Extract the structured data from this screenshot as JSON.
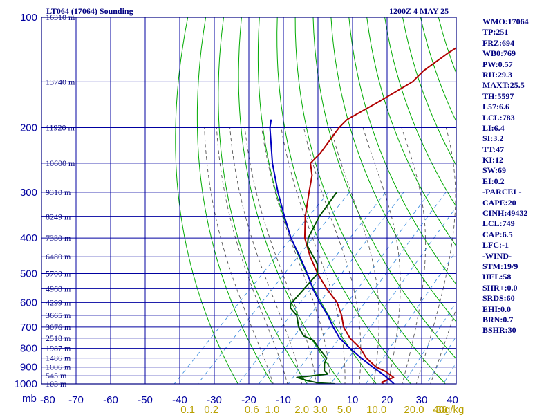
{
  "header": {
    "title": "LT064 (17064) Sounding",
    "timestamp": "1200Z  4 MAY 25"
  },
  "parameters": [
    "WMO:17064",
    "TP:251",
    "FRZ:694",
    "WB0:769",
    "PW:0.57",
    "RH:29.3",
    "MAXT:25.5",
    "TH:5597",
    "L57:6.6",
    "LCL:783",
    "LI:6.4",
    "SI:3.2",
    "TT:47",
    "KI:12",
    "SW:69",
    "EI:0.2",
    "-PARCEL-",
    "CAPE:20",
    "CINH:49432",
    "LCL:749",
    "CAP:6.5",
    "LFC:-1",
    "-WIND-",
    "STM:19/9",
    "HEL:58",
    "SHR+:0.0",
    "SRDS:60",
    "EHI:0.0",
    "BRN:0.7",
    "BSHR:30"
  ],
  "colors": {
    "frame": "#000080",
    "grid": "#0000a0",
    "dry_adiabat": "#00aa00",
    "moist_adiabat": "#555555",
    "mixing_ratio": "#4090e0",
    "temperature": "#b00000",
    "dewpoint": "#005000",
    "parcel": "#0000c0",
    "axis_text": "#0000a0",
    "mixing_text": "#b8a000"
  },
  "chart_data": {
    "type": "line",
    "title": "LT064 (17064) Sounding",
    "xlabel": "",
    "ylabel": "mb",
    "x_axis_unit": "°C",
    "xlim": [
      -80,
      40
    ],
    "ylim_hPa": [
      1000,
      100
    ],
    "y_scale": "log",
    "grid": true,
    "pressure_ticks": [
      100,
      200,
      300,
      400,
      500,
      600,
      700,
      800,
      900,
      1000
    ],
    "axis_unit_label": "mb",
    "x_ticks": [
      -80,
      -70,
      -60,
      -50,
      -40,
      -30,
      -20,
      -10,
      0,
      10,
      20,
      30,
      40
    ],
    "x_tick_labels": [
      "-80",
      "-70",
      "-60",
      "-50",
      "-40",
      "-30",
      "-20",
      "-10",
      "0",
      "10",
      "20",
      "30",
      "40"
    ],
    "mixing_ratio_labels": [
      {
        "value": 0.1,
        "label": "0.1"
      },
      {
        "value": 0.2,
        "label": "0.2"
      },
      {
        "value": 0.6,
        "label": "0.6"
      },
      {
        "value": 1.0,
        "label": "1.0"
      },
      {
        "value": 2.0,
        "label": "2.0"
      },
      {
        "value": 3.0,
        "label": "3.0"
      },
      {
        "value": 5.0,
        "label": "5.0"
      },
      {
        "value": 10.0,
        "label": "10.0"
      },
      {
        "value": 20.0,
        "label": "20.0"
      },
      {
        "value": 30.0,
        "label": "30"
      },
      {
        "value": 40.0,
        "label": "40g/kg"
      }
    ],
    "heights": [
      {
        "p": 100,
        "label": "16310 m"
      },
      {
        "p": 150,
        "label": "13740 m"
      },
      {
        "p": 200,
        "label": "11920 m"
      },
      {
        "p": 250,
        "label": "10600 m"
      },
      {
        "p": 300,
        "label": "9310 m"
      },
      {
        "p": 350,
        "label": "8249 m"
      },
      {
        "p": 400,
        "label": "7330 m"
      },
      {
        "p": 450,
        "label": "6480 m"
      },
      {
        "p": 500,
        "label": "5700 m"
      },
      {
        "p": 550,
        "label": "4968 m"
      },
      {
        "p": 600,
        "label": "4299 m"
      },
      {
        "p": 650,
        "label": "3665 m"
      },
      {
        "p": 700,
        "label": "3076 m"
      },
      {
        "p": 750,
        "label": "2518 m"
      },
      {
        "p": 800,
        "label": "1987 m"
      },
      {
        "p": 850,
        "label": "1486 m"
      },
      {
        "p": 900,
        "label": "1006 m"
      },
      {
        "p": 950,
        "label": "545 m"
      },
      {
        "p": 1000,
        "label": "103 m"
      }
    ],
    "series": [
      {
        "key": "temperature",
        "points": [
          [
            1000,
            19
          ],
          [
            990,
            18
          ],
          [
            960,
            20
          ],
          [
            925,
            16
          ],
          [
            900,
            12
          ],
          [
            850,
            6.5
          ],
          [
            800,
            2
          ],
          [
            750,
            -4
          ],
          [
            700,
            -9
          ],
          [
            650,
            -13
          ],
          [
            600,
            -18
          ],
          [
            550,
            -25
          ],
          [
            500,
            -32
          ],
          [
            450,
            -39
          ],
          [
            400,
            -46
          ],
          [
            350,
            -52
          ],
          [
            300,
            -58
          ],
          [
            270,
            -62
          ],
          [
            250,
            -66
          ],
          [
            235,
            -66
          ],
          [
            200,
            -68
          ],
          [
            190,
            -68
          ],
          [
            170,
            -64
          ],
          [
            150,
            -60
          ],
          [
            140,
            -60
          ],
          [
            125,
            -58
          ],
          [
            100,
            -52
          ]
        ]
      },
      {
        "key": "dewpoint",
        "points": [
          [
            1000,
            5
          ],
          [
            995,
            0
          ],
          [
            980,
            -4
          ],
          [
            960,
            -8
          ],
          [
            940,
            0
          ],
          [
            920,
            -2
          ],
          [
            900,
            -3
          ],
          [
            880,
            -4
          ],
          [
            850,
            -5
          ],
          [
            800,
            -10
          ],
          [
            760,
            -14
          ],
          [
            740,
            -18
          ],
          [
            700,
            -22
          ],
          [
            650,
            -26
          ],
          [
            620,
            -30
          ],
          [
            605,
            -31
          ],
          [
            500,
            -32
          ],
          [
            470,
            -35
          ],
          [
            420,
            -43
          ],
          [
            400,
            -45
          ],
          [
            350,
            -48
          ],
          [
            300,
            -50
          ]
        ]
      },
      {
        "key": "parcel",
        "points": [
          [
            1000,
            22
          ],
          [
            950,
            17
          ],
          [
            900,
            11
          ],
          [
            850,
            5
          ],
          [
            800,
            -1
          ],
          [
            750,
            -7
          ],
          [
            700,
            -12
          ],
          [
            650,
            -17
          ],
          [
            600,
            -23
          ],
          [
            550,
            -29
          ],
          [
            500,
            -35
          ],
          [
            450,
            -42
          ],
          [
            400,
            -50
          ],
          [
            350,
            -58
          ],
          [
            300,
            -67
          ],
          [
            250,
            -77
          ],
          [
            200,
            -88
          ],
          [
            190,
            -90
          ]
        ]
      }
    ]
  }
}
